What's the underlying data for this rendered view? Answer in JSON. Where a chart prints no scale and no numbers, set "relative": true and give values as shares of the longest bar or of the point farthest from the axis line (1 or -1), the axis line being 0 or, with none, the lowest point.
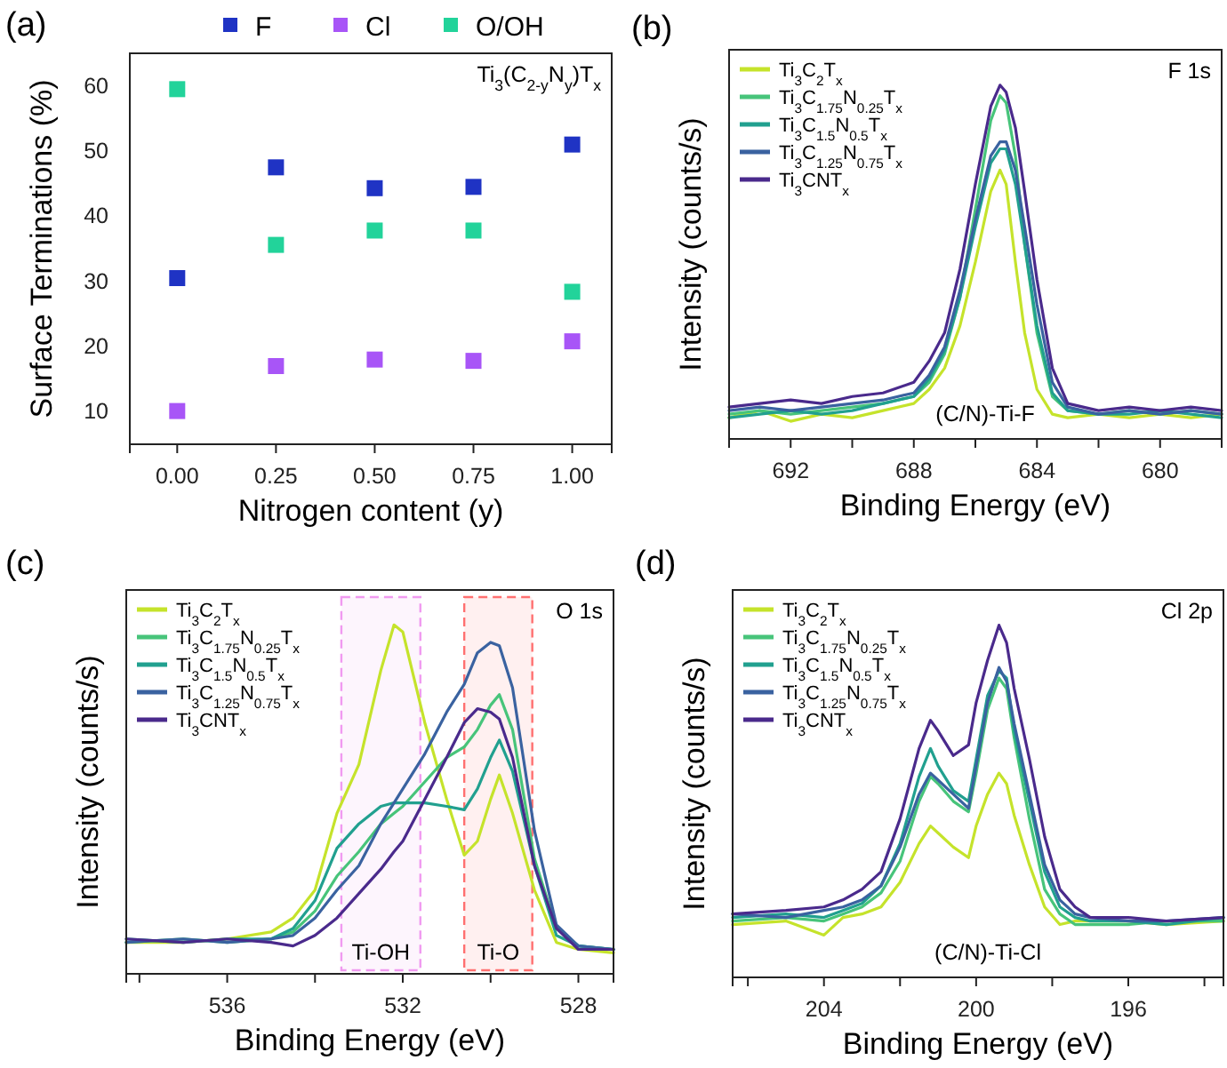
{
  "chart_data": [
    {
      "type": "scatter",
      "title": "(a)",
      "xlabel": "Nitrogen content (y)",
      "ylabel": "Surface Terminations (%)",
      "x": [
        0,
        0.25,
        0.5,
        0.75,
        1
      ],
      "xlim": [
        -0.12,
        1.1
      ],
      "ylim": [
        5,
        65
      ],
      "xticks": [
        {
          "value": 0,
          "label": "0.00"
        },
        {
          "value": 0.25,
          "label": "0.25"
        },
        {
          "value": 0.5,
          "label": "0.50"
        },
        {
          "value": 0.75,
          "label": "0.75"
        },
        {
          "value": 1,
          "label": "1.00"
        }
      ],
      "yticks": [
        10,
        20,
        30,
        40,
        50,
        60
      ],
      "marker": "square",
      "legend": "top",
      "grid": false,
      "annotations": [
        "Ti$_{3}$(C$_{2-y}$N$_{y}$)T$_{x}$"
      ],
      "series": [
        {
          "name": "F",
          "color": "#1f33c4",
          "values": [
            30.5,
            47.5,
            44.3,
            44.5,
            51
          ]
        },
        {
          "name": "Cl",
          "color": "#a855f7",
          "values": [
            10.1,
            17,
            18,
            17.8,
            20.8
          ]
        },
        {
          "name": "O/OH",
          "color": "#22d39a",
          "values": [
            59.5,
            35.6,
            37.8,
            37.8,
            28.4
          ]
        }
      ]
    },
    {
      "type": "line",
      "title": "(b)",
      "xlabel": "Binding Energy (eV)",
      "ylabel": "Intensity (counts/s)",
      "relative": true,
      "xlim": [
        694,
        678
      ],
      "xticks": [
        692,
        {
          "value": 690,
          "label": null
        },
        688,
        {
          "value": 686,
          "label": null
        },
        684,
        {
          "value": 682,
          "label": null
        },
        680
      ],
      "legend": "top left",
      "grid": false,
      "annotations": [
        "F 1s",
        "(C/N)-Ti-F"
      ],
      "x": [
        694,
        693,
        692,
        691,
        690,
        689,
        688,
        687.5,
        687,
        686.5,
        686,
        685.5,
        685.2,
        685,
        684.7,
        684.4,
        684,
        683.5,
        683,
        682,
        681,
        680,
        679,
        678
      ],
      "series": [
        {
          "name": "Ti$_{3}$C$_{2}$T$_{x}$",
          "color": "#c5e32b",
          "values": [
            0.06,
            0.08,
            0.05,
            0.07,
            0.06,
            0.08,
            0.1,
            0.14,
            0.2,
            0.32,
            0.5,
            0.7,
            0.76,
            0.72,
            0.5,
            0.3,
            0.14,
            0.07,
            0.06,
            0.07,
            0.06,
            0.07,
            0.06,
            0.07
          ]
        },
        {
          "name": "Ti$_{3}$C$_{1.75}$N$_{0.25}$T$_{x}$",
          "color": "#47c47a",
          "values": [
            0.07,
            0.08,
            0.07,
            0.08,
            0.09,
            0.1,
            0.12,
            0.16,
            0.24,
            0.4,
            0.65,
            0.9,
            0.97,
            0.95,
            0.8,
            0.55,
            0.3,
            0.12,
            0.08,
            0.07,
            0.08,
            0.07,
            0.08,
            0.07
          ]
        },
        {
          "name": "Ti$_{3}$C$_{1.5}$N$_{0.5}$T$_{x}$",
          "color": "#21a08f",
          "values": [
            0.06,
            0.07,
            0.08,
            0.07,
            0.08,
            0.1,
            0.12,
            0.17,
            0.25,
            0.4,
            0.6,
            0.78,
            0.82,
            0.82,
            0.72,
            0.55,
            0.32,
            0.13,
            0.08,
            0.07,
            0.07,
            0.08,
            0.07,
            0.06
          ]
        },
        {
          "name": "Ti$_{3}$C$_{1.25}$N$_{0.75}$T$_{x}$",
          "color": "#3a62a0",
          "values": [
            0.08,
            0.09,
            0.08,
            0.09,
            0.1,
            0.11,
            0.13,
            0.18,
            0.26,
            0.42,
            0.62,
            0.8,
            0.84,
            0.84,
            0.76,
            0.6,
            0.38,
            0.16,
            0.09,
            0.07,
            0.08,
            0.07,
            0.08,
            0.07
          ]
        },
        {
          "name": "Ti$_{3}$CNT$_{x}$",
          "color": "#4a2a8c",
          "values": [
            0.09,
            0.1,
            0.11,
            0.1,
            0.12,
            0.13,
            0.16,
            0.22,
            0.3,
            0.48,
            0.72,
            0.94,
            1,
            0.98,
            0.88,
            0.7,
            0.45,
            0.2,
            0.1,
            0.08,
            0.09,
            0.08,
            0.09,
            0.08
          ]
        }
      ]
    },
    {
      "type": "line",
      "title": "(c)",
      "xlabel": "Binding Energy (eV)",
      "ylabel": "Intensity (counts/s)",
      "relative": true,
      "xlim": [
        538.3,
        527.2
      ],
      "xticks": [
        {
          "value": 538,
          "label": null
        },
        536,
        {
          "value": 534,
          "label": null
        },
        532,
        {
          "value": 530,
          "label": null
        },
        528
      ],
      "legend": "top left",
      "grid": false,
      "annotations": [
        "O 1s"
      ],
      "bands": [
        {
          "axis": "x",
          "from": 533.4,
          "to": 531.6,
          "label": "Ti-OH",
          "color": "#f09af0"
        },
        {
          "axis": "x",
          "from": 530.6,
          "to": 529.05,
          "label": "Ti-O",
          "color": "#ff7070"
        }
      ],
      "x": [
        538.3,
        537,
        536,
        535,
        534.5,
        534,
        533.5,
        533,
        532.5,
        532.2,
        532,
        531.5,
        531,
        530.6,
        530.3,
        530,
        529.8,
        529.5,
        529,
        528.5,
        528,
        527.2
      ],
      "series": [
        {
          "name": "Ti$_{3}$C$_{2}$T$_{x}$",
          "color": "#c5e32b",
          "values": [
            0.09,
            0.09,
            0.1,
            0.12,
            0.16,
            0.24,
            0.46,
            0.6,
            0.87,
            1,
            0.98,
            0.72,
            0.5,
            0.34,
            0.38,
            0.5,
            0.57,
            0.46,
            0.24,
            0.09,
            0.07,
            0.06
          ]
        },
        {
          "name": "Ti$_{3}$C$_{1.75}$N$_{0.25}$T$_{x}$",
          "color": "#47c47a",
          "values": [
            0.09,
            0.1,
            0.09,
            0.1,
            0.12,
            0.18,
            0.28,
            0.35,
            0.43,
            0.46,
            0.48,
            0.55,
            0.62,
            0.65,
            0.7,
            0.77,
            0.8,
            0.7,
            0.33,
            0.13,
            0.08,
            0.07
          ]
        },
        {
          "name": "Ti$_{3}$C$_{1.5}$N$_{0.5}$T$_{x}$",
          "color": "#21a08f",
          "values": [
            0.1,
            0.09,
            0.1,
            0.1,
            0.13,
            0.21,
            0.36,
            0.43,
            0.48,
            0.49,
            0.49,
            0.49,
            0.48,
            0.47,
            0.53,
            0.62,
            0.67,
            0.58,
            0.31,
            0.11,
            0.08,
            0.07
          ]
        },
        {
          "name": "Ti$_{3}$C$_{1.25}$N$_{0.75}$T$_{x}$",
          "color": "#3a62a0",
          "values": [
            0.09,
            0.1,
            0.09,
            0.1,
            0.11,
            0.16,
            0.24,
            0.31,
            0.43,
            0.49,
            0.53,
            0.63,
            0.75,
            0.83,
            0.92,
            0.95,
            0.94,
            0.82,
            0.41,
            0.14,
            0.08,
            0.07
          ]
        },
        {
          "name": "Ti$_{3}$CNT$_{x}$",
          "color": "#4a2a8c",
          "values": [
            0.1,
            0.09,
            0.1,
            0.09,
            0.08,
            0.11,
            0.16,
            0.23,
            0.3,
            0.35,
            0.38,
            0.5,
            0.62,
            0.72,
            0.76,
            0.75,
            0.73,
            0.62,
            0.31,
            0.13,
            0.07,
            0.07
          ]
        }
      ]
    },
    {
      "type": "line",
      "title": "(d)",
      "xlabel": "Binding Energy (eV)",
      "ylabel": "Intensity (counts/s)",
      "relative": true,
      "xlim": [
        206.4,
        193.5
      ],
      "xticks": [
        {
          "value": 206,
          "label": null
        },
        204,
        {
          "value": 202,
          "label": null
        },
        200,
        {
          "value": 198,
          "label": null
        },
        196,
        {
          "value": 194,
          "label": null
        }
      ],
      "legend": "top left",
      "grid": false,
      "annotations": [
        "Cl 2p",
        "(C/N)-Ti-Cl"
      ],
      "x": [
        206.4,
        205,
        204,
        203.5,
        203,
        202.5,
        202,
        201.5,
        201.2,
        201,
        200.6,
        200.2,
        200,
        199.7,
        199.4,
        199.2,
        199,
        198.6,
        198.2,
        197.8,
        197.4,
        197,
        196,
        195,
        193.5
      ],
      "series": [
        {
          "name": "Ti$_{3}$C$_{2}$T$_{x}$",
          "color": "#c5e32b",
          "values": [
            0.15,
            0.16,
            0.12,
            0.17,
            0.18,
            0.2,
            0.27,
            0.38,
            0.43,
            0.41,
            0.37,
            0.34,
            0.43,
            0.52,
            0.58,
            0.55,
            0.46,
            0.32,
            0.2,
            0.15,
            0.16,
            0.16,
            0.16,
            0.15,
            0.16
          ]
        },
        {
          "name": "Ti$_{3}$C$_{1.75}$N$_{0.25}$T$_{x}$",
          "color": "#47c47a",
          "values": [
            0.16,
            0.17,
            0.16,
            0.18,
            0.2,
            0.24,
            0.33,
            0.5,
            0.57,
            0.55,
            0.5,
            0.47,
            0.58,
            0.76,
            0.85,
            0.82,
            0.68,
            0.45,
            0.25,
            0.18,
            0.15,
            0.15,
            0.15,
            0.16,
            0.16
          ]
        },
        {
          "name": "Ti$_{3}$C$_{1.5}$N$_{0.5}$T$_{x}$",
          "color": "#21a08f",
          "values": [
            0.17,
            0.18,
            0.17,
            0.19,
            0.21,
            0.26,
            0.38,
            0.57,
            0.65,
            0.6,
            0.53,
            0.5,
            0.62,
            0.8,
            0.87,
            0.85,
            0.7,
            0.5,
            0.3,
            0.2,
            0.17,
            0.16,
            0.16,
            0.15,
            0.17
          ]
        },
        {
          "name": "Ti$_{3}$C$_{1.25}$N$_{0.75}$T$_{x}$",
          "color": "#3a62a0",
          "values": [
            0.18,
            0.17,
            0.19,
            0.2,
            0.22,
            0.26,
            0.37,
            0.52,
            0.58,
            0.56,
            0.52,
            0.48,
            0.6,
            0.78,
            0.88,
            0.84,
            0.72,
            0.52,
            0.32,
            0.22,
            0.18,
            0.17,
            0.16,
            0.16,
            0.17
          ]
        },
        {
          "name": "Ti$_{3}$CNT$_{x}$",
          "color": "#4a2a8c",
          "values": [
            0.18,
            0.19,
            0.2,
            0.22,
            0.25,
            0.3,
            0.45,
            0.65,
            0.73,
            0.7,
            0.63,
            0.66,
            0.78,
            0.9,
            1,
            0.95,
            0.82,
            0.62,
            0.4,
            0.25,
            0.2,
            0.17,
            0.17,
            0.16,
            0.17
          ]
        }
      ]
    }
  ]
}
